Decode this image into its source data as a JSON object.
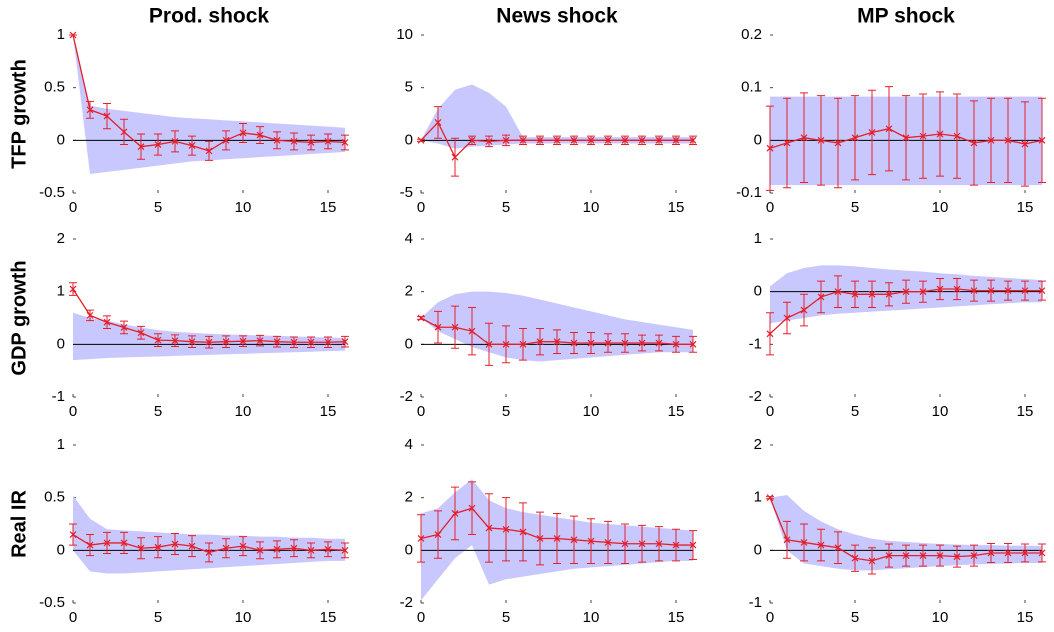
{
  "chart_data": [
    {
      "type": "line",
      "title": "Prod. shock",
      "ylabel": "TFP growth",
      "x": [
        0,
        1,
        2,
        3,
        4,
        5,
        6,
        7,
        8,
        9,
        10,
        11,
        12,
        13,
        14,
        15,
        16
      ],
      "xlim": [
        0,
        16
      ],
      "xticks": [
        0,
        5,
        10,
        15
      ],
      "ylim": [
        -0.5,
        1
      ],
      "yticks": [
        -0.5,
        0,
        0.5,
        1
      ],
      "color": "#e3202b",
      "band_color": "#c8c8ff",
      "series": [
        {
          "values": [
            1,
            0.29,
            0.23,
            0.08,
            -0.06,
            -0.04,
            -0.01,
            -0.05,
            -0.1,
            0,
            0.07,
            0.05,
            0,
            -0.01,
            -0.02,
            -0.01,
            -0.02
          ],
          "errors": [
            0,
            0.08,
            0.12,
            0.12,
            0.12,
            0.1,
            0.1,
            0.09,
            0.09,
            0.09,
            0.09,
            0.08,
            0.08,
            0.08,
            0.07,
            0.07,
            0.07
          ],
          "band_upper": [
            1,
            0.33,
            0.3,
            0.28,
            0.26,
            0.24,
            0.22,
            0.21,
            0.2,
            0.19,
            0.18,
            0.17,
            0.16,
            0.15,
            0.14,
            0.13,
            0.12
          ],
          "band_lower": [
            1,
            -0.32,
            -0.3,
            -0.28,
            -0.26,
            -0.24,
            -0.22,
            -0.2,
            -0.19,
            -0.18,
            -0.17,
            -0.16,
            -0.15,
            -0.14,
            -0.13,
            -0.12,
            -0.11
          ]
        }
      ]
    },
    {
      "type": "line",
      "title": "News shock",
      "x": [
        0,
        1,
        2,
        3,
        4,
        5,
        6,
        7,
        8,
        9,
        10,
        11,
        12,
        13,
        14,
        15,
        16
      ],
      "xlim": [
        0,
        16
      ],
      "xticks": [
        0,
        5,
        10,
        15
      ],
      "ylim": [
        -5,
        10
      ],
      "yticks": [
        -5,
        0,
        5,
        10
      ],
      "color": "#e3202b",
      "band_color": "#c8c8ff",
      "series": [
        {
          "values": [
            0,
            1.7,
            -1.6,
            0,
            -0.1,
            0,
            0,
            0,
            0,
            0,
            0,
            0,
            0,
            0,
            0,
            0,
            0
          ],
          "errors": [
            0.1,
            1.5,
            1.8,
            0.4,
            0.5,
            0.5,
            0.4,
            0.4,
            0.4,
            0.4,
            0.4,
            0.4,
            0.4,
            0.4,
            0.4,
            0.4,
            0.4
          ],
          "band_upper": [
            0,
            3,
            4.8,
            5.3,
            4.5,
            3.2,
            0.3,
            0.3,
            0.3,
            0.3,
            0.3,
            0.3,
            0.3,
            0.3,
            0.3,
            0.3,
            0.3
          ],
          "band_lower": [
            0,
            -0.3,
            -0.8,
            -0.6,
            -0.5,
            -0.4,
            -0.3,
            -0.3,
            -0.3,
            -0.3,
            -0.3,
            -0.3,
            -0.3,
            -0.3,
            -0.3,
            -0.3,
            -0.3
          ]
        }
      ]
    },
    {
      "type": "line",
      "title": "MP shock",
      "x": [
        0,
        1,
        2,
        3,
        4,
        5,
        6,
        7,
        8,
        9,
        10,
        11,
        12,
        13,
        14,
        15,
        16
      ],
      "xlim": [
        0,
        16
      ],
      "xticks": [
        0,
        5,
        10,
        15
      ],
      "ylim": [
        -0.1,
        0.2
      ],
      "yticks": [
        -0.1,
        0,
        0.1,
        0.2
      ],
      "color": "#e3202b",
      "band_color": "#c8c8ff",
      "series": [
        {
          "values": [
            -0.015,
            -0.005,
            0.005,
            0,
            -0.005,
            0.005,
            0.015,
            0.022,
            0.005,
            0.008,
            0.012,
            0.008,
            -0.005,
            0,
            0,
            -0.007,
            0
          ],
          "errors": [
            0.08,
            0.085,
            0.085,
            0.085,
            0.085,
            0.08,
            0.08,
            0.08,
            0.08,
            0.08,
            0.08,
            0.08,
            0.08,
            0.08,
            0.08,
            0.08,
            0.08
          ],
          "band_upper": [
            0.083,
            0.083,
            0.083,
            0.083,
            0.083,
            0.083,
            0.083,
            0.083,
            0.083,
            0.083,
            0.083,
            0.083,
            0.083,
            0.083,
            0.083,
            0.083,
            0.083
          ],
          "band_lower": [
            -0.085,
            -0.085,
            -0.085,
            -0.085,
            -0.085,
            -0.085,
            -0.085,
            -0.085,
            -0.085,
            -0.085,
            -0.085,
            -0.085,
            -0.085,
            -0.085,
            -0.085,
            -0.085,
            -0.085
          ]
        }
      ]
    },
    {
      "type": "line",
      "ylabel": "GDP growth",
      "x": [
        0,
        1,
        2,
        3,
        4,
        5,
        6,
        7,
        8,
        9,
        10,
        11,
        12,
        13,
        14,
        15,
        16
      ],
      "xlim": [
        0,
        16
      ],
      "xticks": [
        0,
        5,
        10,
        15
      ],
      "ylim": [
        -1,
        2
      ],
      "yticks": [
        -1,
        0,
        1,
        2
      ],
      "color": "#e3202b",
      "band_color": "#c8c8ff",
      "series": [
        {
          "values": [
            1.05,
            0.55,
            0.42,
            0.32,
            0.22,
            0.08,
            0.07,
            0.05,
            0.04,
            0.05,
            0.06,
            0.07,
            0.05,
            0.04,
            0.04,
            0.04,
            0.05
          ],
          "errors": [
            0.12,
            0.1,
            0.12,
            0.12,
            0.12,
            0.12,
            0.11,
            0.11,
            0.11,
            0.11,
            0.1,
            0.1,
            0.1,
            0.1,
            0.1,
            0.1,
            0.1
          ],
          "band_upper": [
            0.6,
            0.5,
            0.45,
            0.38,
            0.32,
            0.27,
            0.24,
            0.22,
            0.2,
            0.19,
            0.18,
            0.17,
            0.16,
            0.15,
            0.14,
            0.13,
            0.12
          ],
          "band_lower": [
            -0.3,
            -0.28,
            -0.26,
            -0.25,
            -0.24,
            -0.23,
            -0.22,
            -0.21,
            -0.2,
            -0.19,
            -0.18,
            -0.17,
            -0.16,
            -0.15,
            -0.14,
            -0.13,
            -0.12
          ]
        }
      ]
    },
    {
      "type": "line",
      "x": [
        0,
        1,
        2,
        3,
        4,
        5,
        6,
        7,
        8,
        9,
        10,
        11,
        12,
        13,
        14,
        15,
        16
      ],
      "xlim": [
        0,
        16
      ],
      "xticks": [
        0,
        5,
        10,
        15
      ],
      "ylim": [
        -2,
        4
      ],
      "yticks": [
        -2,
        0,
        2,
        4
      ],
      "color": "#e3202b",
      "band_color": "#c8c8ff",
      "series": [
        {
          "values": [
            1,
            0.65,
            0.65,
            0.5,
            0,
            0,
            0,
            0.1,
            0.1,
            0.05,
            0.05,
            0.05,
            0.05,
            0.05,
            0.05,
            0,
            0
          ],
          "errors": [
            0.05,
            0.6,
            0.8,
            0.9,
            0.8,
            0.7,
            0.6,
            0.5,
            0.45,
            0.4,
            0.4,
            0.35,
            0.35,
            0.3,
            0.3,
            0.3,
            0.3
          ],
          "band_upper": [
            1,
            1.6,
            1.9,
            2,
            2,
            1.95,
            1.85,
            1.7,
            1.55,
            1.4,
            1.25,
            1.1,
            0.95,
            0.85,
            0.75,
            0.65,
            0.55
          ],
          "band_lower": [
            1,
            0.5,
            0.2,
            -0.1,
            -0.3,
            -0.5,
            -0.6,
            -0.65,
            -0.6,
            -0.55,
            -0.5,
            -0.45,
            -0.4,
            -0.35,
            -0.3,
            -0.3,
            -0.3
          ]
        }
      ]
    },
    {
      "type": "line",
      "x": [
        0,
        1,
        2,
        3,
        4,
        5,
        6,
        7,
        8,
        9,
        10,
        11,
        12,
        13,
        14,
        15,
        16
      ],
      "xlim": [
        0,
        16
      ],
      "xticks": [
        0,
        5,
        10,
        15
      ],
      "ylim": [
        -2,
        1
      ],
      "yticks": [
        -2,
        -1,
        0,
        1
      ],
      "color": "#e3202b",
      "band_color": "#c8c8ff",
      "series": [
        {
          "values": [
            -0.8,
            -0.5,
            -0.35,
            -0.1,
            0,
            -0.05,
            -0.05,
            -0.05,
            0,
            0,
            0.05,
            0.05,
            0.02,
            0.02,
            0.02,
            0.02,
            0.02
          ],
          "errors": [
            0.4,
            0.3,
            0.3,
            0.3,
            0.3,
            0.25,
            0.25,
            0.22,
            0.22,
            0.2,
            0.2,
            0.2,
            0.2,
            0.2,
            0.18,
            0.18,
            0.18
          ],
          "band_upper": [
            0.1,
            0.35,
            0.45,
            0.5,
            0.5,
            0.48,
            0.45,
            0.42,
            0.4,
            0.38,
            0.35,
            0.33,
            0.3,
            0.28,
            0.26,
            0.24,
            0.22
          ],
          "band_lower": [
            -0.6,
            -0.55,
            -0.5,
            -0.45,
            -0.42,
            -0.4,
            -0.38,
            -0.36,
            -0.34,
            -0.32,
            -0.3,
            -0.28,
            -0.26,
            -0.24,
            -0.22,
            -0.2,
            -0.2
          ]
        }
      ]
    },
    {
      "type": "line",
      "ylabel": "Real IR",
      "x": [
        0,
        1,
        2,
        3,
        4,
        5,
        6,
        7,
        8,
        9,
        10,
        11,
        12,
        13,
        14,
        15,
        16
      ],
      "xlim": [
        0,
        16
      ],
      "xticks": [
        0,
        5,
        10,
        15
      ],
      "ylim": [
        -0.5,
        1
      ],
      "yticks": [
        -0.5,
        0,
        0.5,
        1
      ],
      "color": "#e3202b",
      "band_color": "#c8c8ff",
      "series": [
        {
          "values": [
            0.15,
            0.05,
            0.07,
            0.07,
            0.02,
            0.03,
            0.06,
            0.04,
            -0.02,
            0.02,
            0.04,
            0,
            0.01,
            0.02,
            0,
            0.01,
            0
          ],
          "errors": [
            0.1,
            0.1,
            0.1,
            0.1,
            0.1,
            0.1,
            0.1,
            0.1,
            0.09,
            0.09,
            0.09,
            0.08,
            0.08,
            0.08,
            0.07,
            0.07,
            0.07
          ],
          "band_upper": [
            0.52,
            0.3,
            0.2,
            0.19,
            0.18,
            0.17,
            0.16,
            0.15,
            0.15,
            0.14,
            0.14,
            0.13,
            0.13,
            0.12,
            0.12,
            0.11,
            0.11
          ],
          "band_lower": [
            0,
            -0.2,
            -0.22,
            -0.22,
            -0.21,
            -0.2,
            -0.19,
            -0.18,
            -0.17,
            -0.16,
            -0.15,
            -0.14,
            -0.13,
            -0.12,
            -0.11,
            -0.1,
            -0.1
          ]
        }
      ]
    },
    {
      "type": "line",
      "x": [
        0,
        1,
        2,
        3,
        4,
        5,
        6,
        7,
        8,
        9,
        10,
        11,
        12,
        13,
        14,
        15,
        16
      ],
      "xlim": [
        0,
        16
      ],
      "xticks": [
        0,
        5,
        10,
        15
      ],
      "ylim": [
        -2,
        4
      ],
      "yticks": [
        -2,
        0,
        2,
        4
      ],
      "color": "#e3202b",
      "band_color": "#c8c8ff",
      "series": [
        {
          "values": [
            0.45,
            0.6,
            1.4,
            1.6,
            0.85,
            0.8,
            0.7,
            0.45,
            0.45,
            0.4,
            0.35,
            0.3,
            0.25,
            0.25,
            0.25,
            0.2,
            0.2
          ],
          "errors": [
            0.9,
            0.9,
            1,
            1,
            1.3,
            1.2,
            1.1,
            1,
            0.95,
            0.9,
            0.85,
            0.8,
            0.75,
            0.7,
            0.65,
            0.6,
            0.55
          ],
          "band_upper": [
            1.4,
            1.6,
            2.2,
            2.7,
            1.9,
            1.6,
            1.45,
            1.35,
            1.25,
            1.15,
            1.05,
            1,
            0.95,
            0.9,
            0.85,
            0.8,
            0.75
          ],
          "band_lower": [
            -1.9,
            -1.1,
            -0.3,
            0.2,
            -1.3,
            -1.1,
            -1,
            -0.9,
            -0.8,
            -0.7,
            -0.65,
            -0.6,
            -0.55,
            -0.5,
            -0.45,
            -0.4,
            -0.4
          ]
        }
      ]
    },
    {
      "type": "line",
      "x": [
        0,
        1,
        2,
        3,
        4,
        5,
        6,
        7,
        8,
        9,
        10,
        11,
        12,
        13,
        14,
        15,
        16
      ],
      "xlim": [
        0,
        16
      ],
      "xticks": [
        0,
        5,
        10,
        15
      ],
      "ylim": [
        -1,
        2
      ],
      "yticks": [
        -1,
        0,
        1,
        2
      ],
      "color": "#e3202b",
      "band_color": "#c8c8ff",
      "series": [
        {
          "values": [
            1,
            0.2,
            0.15,
            0.1,
            0.05,
            -0.15,
            -0.2,
            -0.1,
            -0.1,
            -0.1,
            -0.1,
            -0.12,
            -0.1,
            -0.05,
            -0.05,
            -0.05,
            -0.05
          ],
          "errors": [
            0.02,
            0.35,
            0.35,
            0.3,
            0.3,
            0.25,
            0.25,
            0.22,
            0.2,
            0.2,
            0.2,
            0.2,
            0.2,
            0.18,
            0.18,
            0.17,
            0.17
          ],
          "band_upper": [
            1,
            1.05,
            0.75,
            0.55,
            0.4,
            0.3,
            0.22,
            0.18,
            0.16,
            0.14,
            0.12,
            0.11,
            0.1,
            0.1,
            0.09,
            0.09,
            0.08
          ],
          "band_lower": [
            1,
            0,
            -0.25,
            -0.3,
            -0.35,
            -0.38,
            -0.38,
            -0.36,
            -0.34,
            -0.32,
            -0.3,
            -0.28,
            -0.27,
            -0.26,
            -0.25,
            -0.24,
            -0.24
          ]
        }
      ]
    }
  ]
}
